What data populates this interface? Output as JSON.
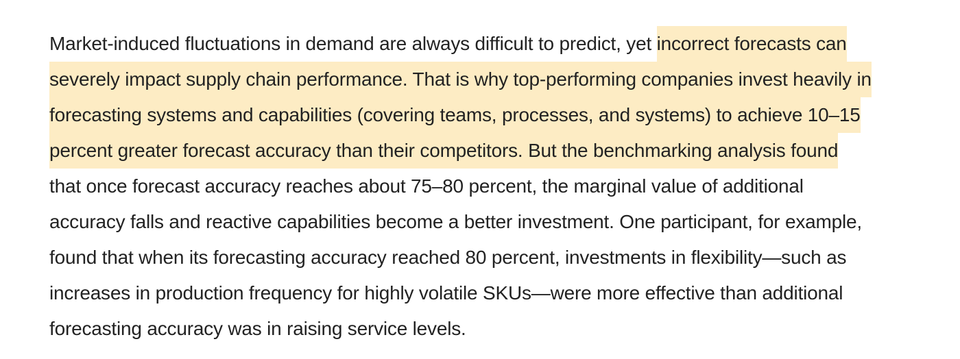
{
  "article": {
    "highlight_color": "#fdecc4",
    "lines": [
      {
        "plain": "Market-induced fluctuations in demand are always difficult to predict, yet ",
        "highlight": "incorrect forecasts can"
      },
      {
        "plain": "",
        "highlight": "severely impact supply chain performance. That is why top-performing companies invest heavily in"
      },
      {
        "plain": "",
        "highlight": "forecasting systems and capabilities (covering teams, processes, and systems) to achieve 10–15"
      },
      {
        "plain": "",
        "highlight": "percent greater forecast accuracy than their competitors. But the benchmarking analysis found"
      },
      {
        "plain": "that once forecast accuracy reaches about 75–80 percent, the marginal value of additional",
        "highlight": ""
      },
      {
        "plain": "accuracy falls and reactive capabilities become a better investment. One participant, for example,",
        "highlight": ""
      },
      {
        "plain": "found that when its forecasting accuracy reached 80 percent, investments in flexibility—such as",
        "highlight": ""
      },
      {
        "plain": "increases in production frequency for highly volatile SKUs—were more effective than additional",
        "highlight": ""
      },
      {
        "plain": "forecasting accuracy was in raising service levels.",
        "highlight": ""
      }
    ]
  }
}
